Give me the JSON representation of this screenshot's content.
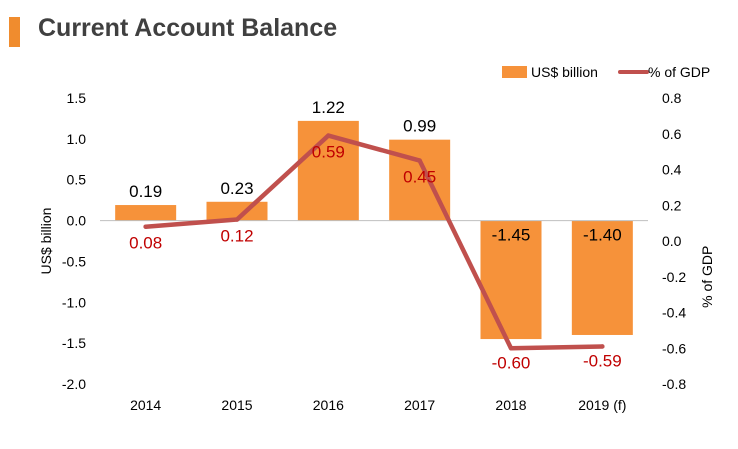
{
  "title": "Current Account Balance",
  "colors": {
    "accent": "#F08C2E",
    "bar": "#F6923A",
    "line": "#C0504D",
    "line_label": "#C00000",
    "text": "#000000",
    "title": "#404040"
  },
  "chart_data": {
    "type": "bar+line",
    "categories": [
      "2014",
      "2015",
      "2016",
      "2017",
      "2018",
      "2019 (f)"
    ],
    "series": [
      {
        "name": "US$ billion",
        "type": "bar",
        "axis": "left",
        "values": [
          0.19,
          0.23,
          1.22,
          0.99,
          -1.45,
          -1.4
        ],
        "labels": [
          "0.19",
          "0.23",
          "1.22",
          "0.99",
          "-1.45",
          "-1.40"
        ]
      },
      {
        "name": "% of GDP",
        "type": "line",
        "axis": "right",
        "values": [
          0.08,
          0.12,
          0.59,
          0.45,
          -0.6,
          -0.59
        ],
        "labels": [
          "0.08",
          "0.12",
          "0.59",
          "0.45",
          "-0.60",
          "-0.59"
        ]
      }
    ],
    "ylabel_left": "US$ billion",
    "ylabel_right": "% of GDP",
    "ylim_left": [
      -2.0,
      1.5
    ],
    "ylim_right": [
      -0.8,
      0.8
    ],
    "yticks_left": [
      "1.5",
      "1.0",
      "0.5",
      "0.0",
      "-0.5",
      "-1.0",
      "-1.5",
      "-2.0"
    ],
    "yticks_right": [
      "0.8",
      "0.6",
      "0.4",
      "0.2",
      "0.0",
      "-0.2",
      "-0.4",
      "-0.6",
      "-0.8"
    ],
    "legend_position": "top-right",
    "grid": false
  }
}
